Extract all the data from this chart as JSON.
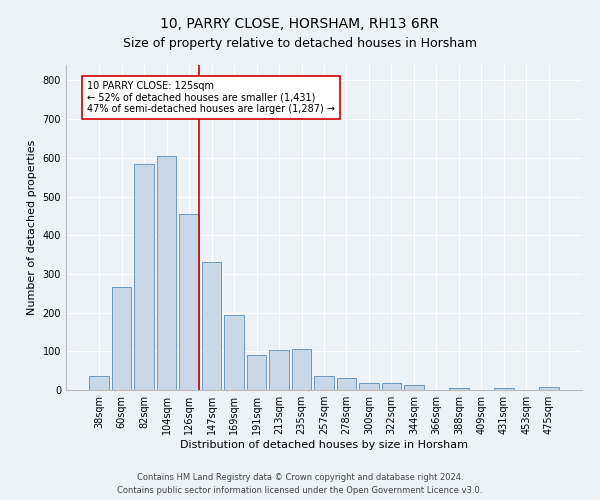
{
  "title": "10, PARRY CLOSE, HORSHAM, RH13 6RR",
  "subtitle": "Size of property relative to detached houses in Horsham",
  "xlabel": "Distribution of detached houses by size in Horsham",
  "ylabel": "Number of detached properties",
  "footer_line1": "Contains HM Land Registry data © Crown copyright and database right 2024.",
  "footer_line2": "Contains public sector information licensed under the Open Government Licence v3.0.",
  "categories": [
    "38sqm",
    "60sqm",
    "82sqm",
    "104sqm",
    "126sqm",
    "147sqm",
    "169sqm",
    "191sqm",
    "213sqm",
    "235sqm",
    "257sqm",
    "278sqm",
    "300sqm",
    "322sqm",
    "344sqm",
    "366sqm",
    "388sqm",
    "409sqm",
    "431sqm",
    "453sqm",
    "475sqm"
  ],
  "values": [
    35,
    265,
    585,
    605,
    455,
    330,
    195,
    90,
    103,
    105,
    37,
    32,
    18,
    17,
    13,
    0,
    6,
    0,
    6,
    0,
    7
  ],
  "bar_color": "#c8d8e8",
  "bar_edge_color": "#5b8db8",
  "annotation_line1": "10 PARRY CLOSE: 125sqm",
  "annotation_line2": "← 52% of detached houses are smaller (1,431)",
  "annotation_line3": "47% of semi-detached houses are larger (1,287) →",
  "annotation_box_color": "#ffffff",
  "annotation_box_edge": "#cc0000",
  "vline_color": "#cc0000",
  "vline_x_index": 4,
  "ylim": [
    0,
    840
  ],
  "yticks": [
    0,
    100,
    200,
    300,
    400,
    500,
    600,
    700,
    800
  ],
  "background_color": "#edf2f9",
  "plot_bg_color": "#edf2f9",
  "grid_color": "#ffffff",
  "title_fontsize": 10,
  "subtitle_fontsize": 9,
  "axis_label_fontsize": 8,
  "tick_fontsize": 7,
  "annotation_fontsize": 7,
  "footer_fontsize": 6
}
